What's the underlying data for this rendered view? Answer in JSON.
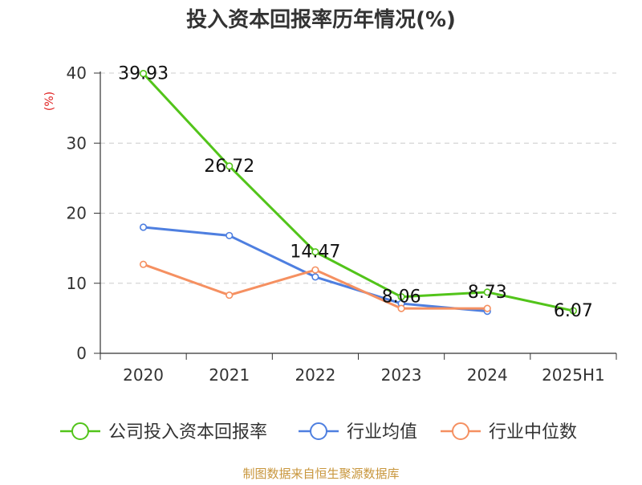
{
  "chart_data": {
    "type": "line",
    "title": "投入资本回报率历年情况(%)",
    "ylabel": "(%)",
    "xlabel": "",
    "categories": [
      "2020",
      "2021",
      "2022",
      "2023",
      "2024",
      "2025H1"
    ],
    "yticks": [
      "0",
      "10",
      "20",
      "30",
      "40"
    ],
    "ylim": [
      0,
      40
    ],
    "grid": true,
    "legend_position": "bottom",
    "series": [
      {
        "name": "公司投入资本回报率",
        "color": "#52c41a",
        "values": [
          39.93,
          26.72,
          14.47,
          8.06,
          8.73,
          6.07
        ],
        "labels": [
          "39.93",
          "26.72",
          "14.47",
          "8.06",
          "8.73",
          "6.07"
        ]
      },
      {
        "name": "行业均值",
        "color": "#4e7fe0",
        "values": [
          18.0,
          16.8,
          10.9,
          7.1,
          6.0,
          null
        ]
      },
      {
        "name": "行业中位数",
        "color": "#f59061",
        "values": [
          12.7,
          8.3,
          11.9,
          6.4,
          6.4,
          null
        ]
      }
    ]
  },
  "footer": {
    "source": "制图数据来自恒生聚源数据库",
    "source_color": "#c8963c"
  }
}
